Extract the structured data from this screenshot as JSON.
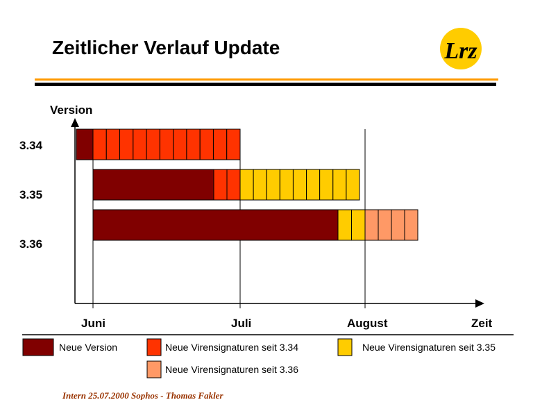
{
  "header": {
    "title": "Zeitlicher Verlauf Update",
    "logo": "Lrz"
  },
  "diagram": {
    "y_axis_label": "Version",
    "rows": [
      "3.34",
      "3.35",
      "3.36"
    ],
    "x_labels": [
      "Juni",
      "Juli",
      "August",
      "Zeit"
    ]
  },
  "legend": [
    "Neue Version",
    "Neue Virensignaturen seit 3.34",
    "Neue Virensignaturen seit 3.35",
    "Neue Virensignaturen seit 3.36"
  ],
  "footer": "Intern 25.07.2000 Sophos - Thomas Fakler"
}
